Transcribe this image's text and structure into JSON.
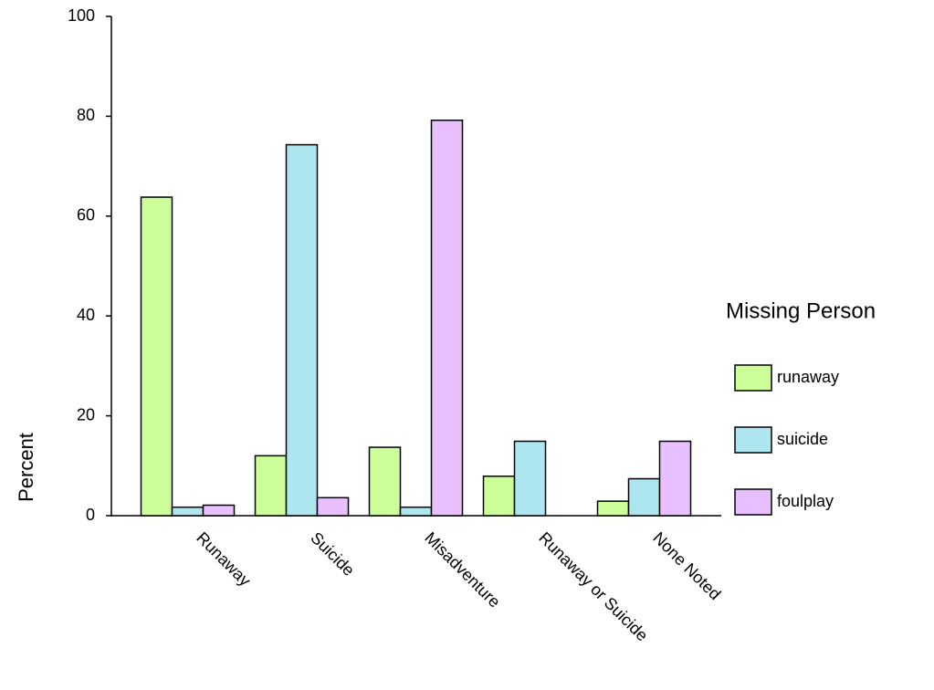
{
  "chart_data": {
    "type": "bar",
    "y_label": "Percent",
    "legend_title": "Missing Person",
    "categories": [
      "Runaway",
      "Suicide",
      "Misadventure",
      "Runaway or Suicide",
      "None Noted"
    ],
    "series": [
      {
        "name": "runaway",
        "color": "#ccff99",
        "values": [
          63.8,
          12,
          13.7,
          7.9,
          2.9
        ]
      },
      {
        "name": "suicide",
        "color": "#aee6ef",
        "values": [
          1.7,
          74.3,
          1.7,
          14.9,
          7.4
        ]
      },
      {
        "name": "foulplay",
        "color": "#e8c0ff",
        "values": [
          2.1,
          3.6,
          79.2,
          0,
          14.9
        ]
      }
    ],
    "ylim": [
      0,
      100
    ],
    "yticks": [
      0,
      20,
      40,
      60,
      80,
      100
    ],
    "grid": false,
    "legend": "right"
  }
}
